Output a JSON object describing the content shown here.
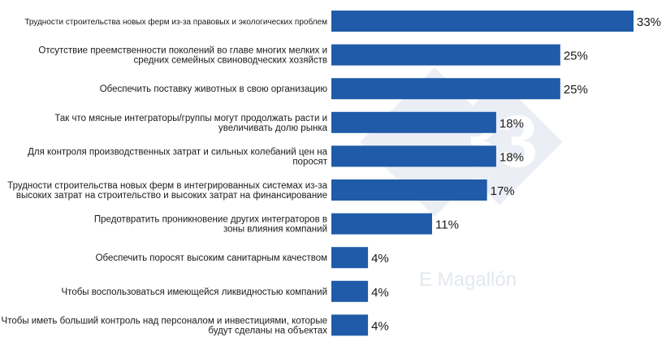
{
  "colors": {
    "bar": "#1f5ba8",
    "label_text": "#1a1a1a",
    "value_text": "#1a1a1a",
    "watermark": "#e6ecf3",
    "background": "#ffffff"
  },
  "watermark": {
    "text": "E Magallón",
    "logo_text": "33"
  },
  "chart_data": {
    "type": "bar",
    "orientation": "horizontal",
    "value_suffix": "%",
    "categories": [
      "Трудности строительства новых ферм из-за правовых и экологических проблем",
      "Отсутствие преемственности поколений во главе многих мелких и средних семейных свиноводческих хозяйств",
      "Обеспечить поставку животных в свою организацию",
      "Так что мясные интеграторы/группы могут продолжать расти и увеличивать долю рынка",
      "Для контроля производственных затрат и сильных колебаний цен на поросят",
      "Трудности строительства новых ферм в интегрированных системах из-за высоких затрат на строительство и высоких затрат на финансирование",
      "Предотвратить проникновение других интеграторов в зоны влияния компаний",
      "Обеспечить поросят высоким санитарным качеством",
      "Чтобы воспользоваться имеющейся ликвидностью компаний",
      "Чтобы иметь больший контроль над персоналом и инвестициями, которые будут сделаны на объектах"
    ],
    "category_lines": [
      [
        "Трудности строительства новых ферм из-за правовых и экологических проблем"
      ],
      [
        "Отсутствие преемственности поколений во главе многих мелких и",
        "средних семейных свиноводческих хозяйств"
      ],
      [
        "Обеспечить поставку животных в свою организацию"
      ],
      [
        "Так что мясные интеграторы/группы могут продолжать расти и",
        "увеличивать долю рынка"
      ],
      [
        "Для контроля производственных затрат и сильных колебаний цен на",
        "поросят"
      ],
      [
        "Трудности строительства новых ферм в интегрированных системах из-за",
        "высоких затрат на строительство и высоких затрат на финансирование"
      ],
      [
        "Предотвратить проникновение других интеграторов в",
        "зоны влияния компаний"
      ],
      [
        "Обеспечить поросят высоким санитарным качеством"
      ],
      [
        "Чтобы воспользоваться имеющейся ликвидностью компаний"
      ],
      [
        "Чтобы иметь больший контроль над персоналом и инвестициями, которые",
        "будут сделаны на объектах"
      ]
    ],
    "values": [
      33,
      25,
      25,
      18,
      18,
      17,
      11,
      4,
      4,
      4
    ],
    "value_labels": [
      "33%",
      "25%",
      "25%",
      "18%",
      "18%",
      "17%",
      "11%",
      "4%",
      "4%",
      "4%"
    ],
    "xlim": [
      0,
      33
    ],
    "grid": false,
    "legend": "none",
    "title": "",
    "xlabel": "",
    "ylabel": ""
  }
}
